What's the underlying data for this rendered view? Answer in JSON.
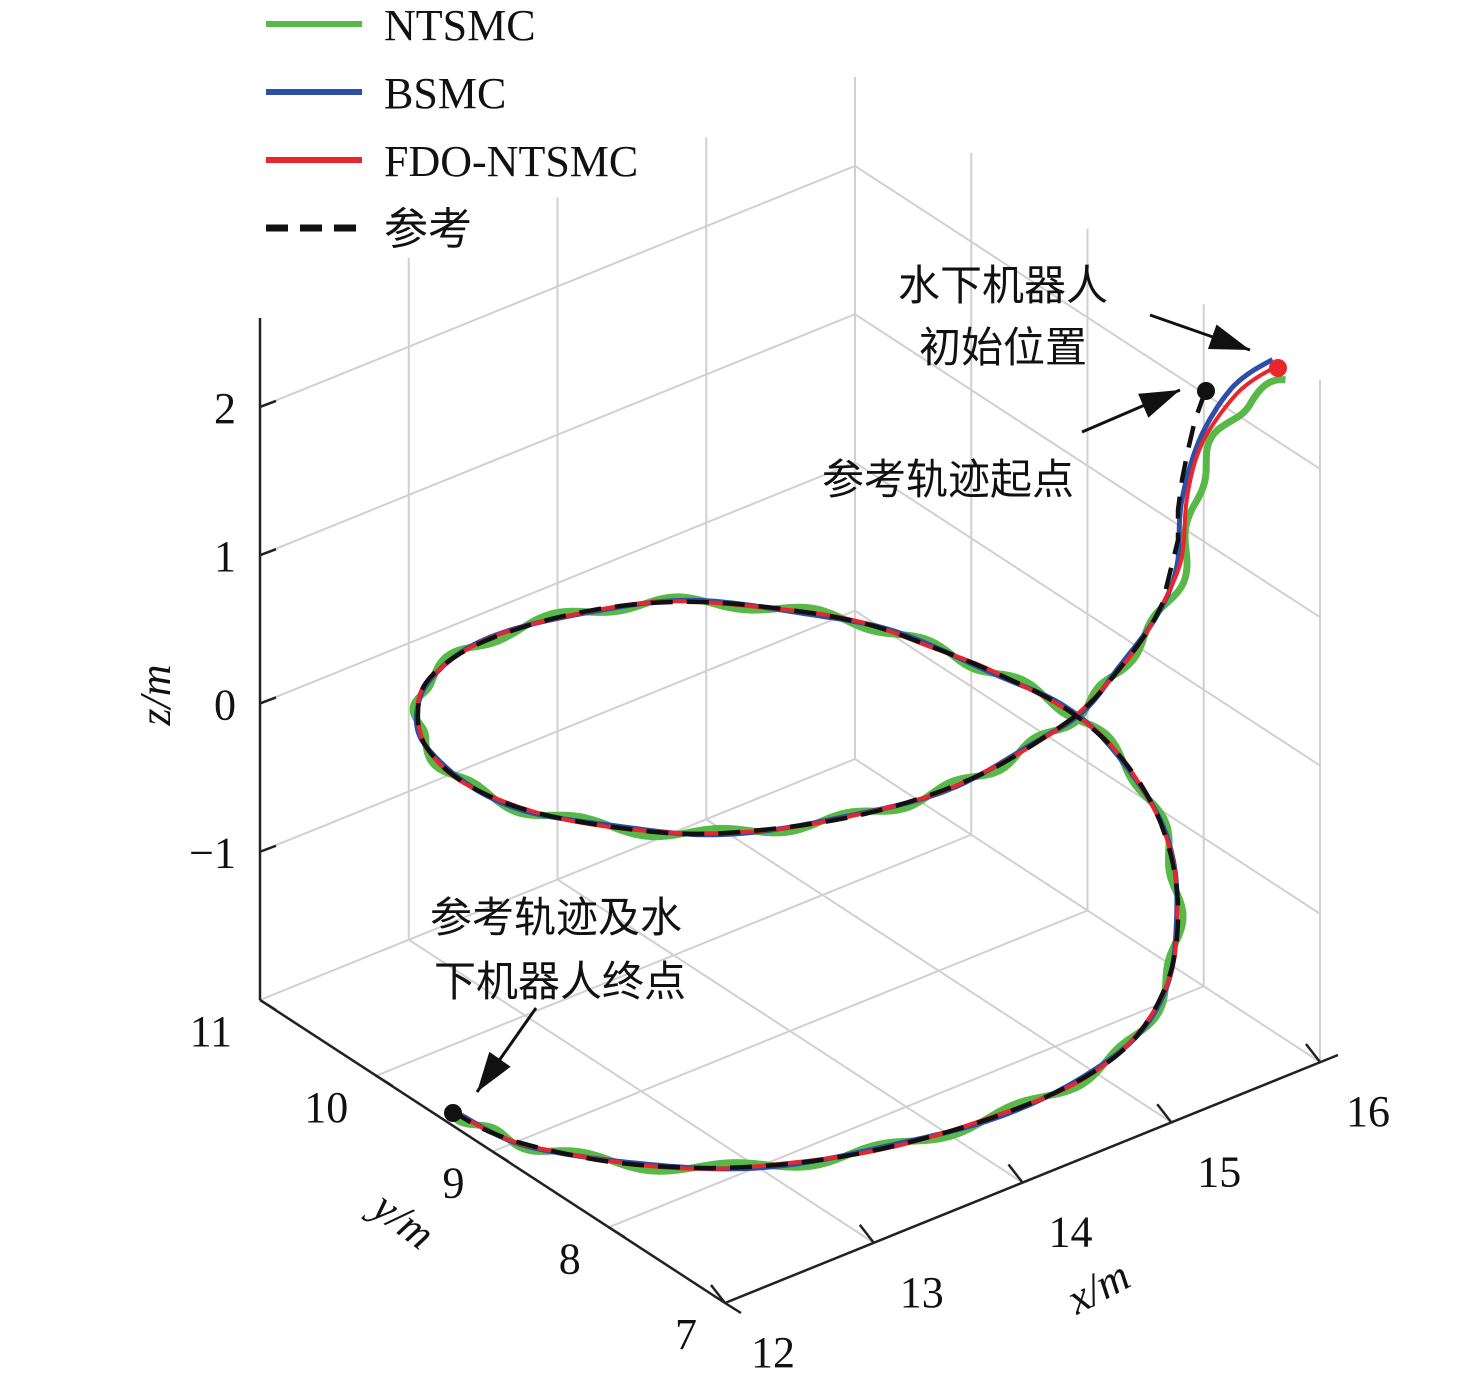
{
  "chart_data": {
    "type": "line3d",
    "x_axis": {
      "label": "x/m",
      "ticks": [
        "12",
        "13",
        "14",
        "15",
        "16"
      ],
      "range": [
        12,
        16
      ]
    },
    "y_axis": {
      "label": "y/m",
      "ticks": [
        "7",
        "8",
        "9",
        "10",
        "11"
      ],
      "range": [
        7,
        11
      ]
    },
    "z_axis": {
      "label": "z/m",
      "ticks": [
        "2",
        "1",
        "0",
        "−1"
      ],
      "range": [
        -2,
        2.6
      ]
    },
    "grid": true,
    "legend_position": "top-left",
    "series": [
      {
        "name": "NTSMC",
        "color": "#58b848",
        "style": "solid"
      },
      {
        "name": "BSMC",
        "color": "#2d4fa8",
        "style": "solid"
      },
      {
        "name": "FDO-NTSMC",
        "color": "#e8262b",
        "style": "solid"
      },
      {
        "name": "参考",
        "color": "#111111",
        "style": "dashed"
      }
    ],
    "annotations": [
      {
        "lines": [
          "水下机器人",
          "初始位置"
        ]
      },
      {
        "lines": [
          "参考轨迹起点"
        ]
      },
      {
        "lines": [
          "参考轨迹及水",
          "下机器人终点"
        ]
      }
    ]
  }
}
